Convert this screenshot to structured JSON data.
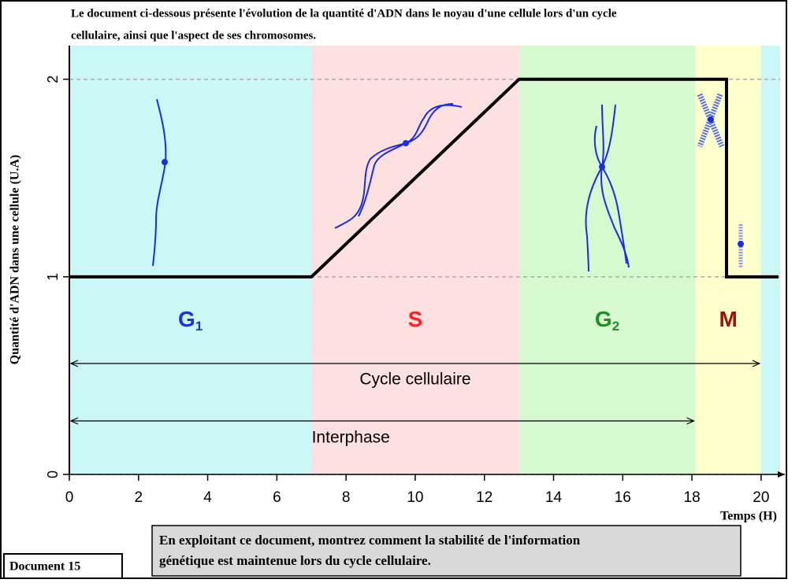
{
  "chart_data": {
    "type": "line",
    "title": "Le document ci-dessous présente l'évolution de la quantité d'ADN dans le noyau d'une cellule lors d'un cycle cellulaire, ainsi que l'aspect de ses chromosomes.",
    "y_label": "Quantité d'ADN dans une cellule (U.A)",
    "x_label": "Temps (H)",
    "x": [
      0,
      7,
      13,
      19,
      19,
      20.5
    ],
    "series": [
      {
        "color": "#000000",
        "values": [
          1,
          1,
          2,
          2,
          1,
          1
        ]
      }
    ],
    "xlim": [
      0,
      20.55
    ],
    "ylim": [
      0,
      2.17
    ],
    "xticks": [
      0,
      2,
      4,
      6,
      8,
      10,
      12,
      14,
      16,
      18,
      20
    ],
    "yticks": [
      0,
      1,
      2
    ],
    "grid": true,
    "phases": [
      {
        "name": "G",
        "sub": "1",
        "start": 0,
        "end": 7,
        "color": "#ccf7f7",
        "label_color": "#1f2fe0"
      },
      {
        "name": "S",
        "start": 7,
        "end": 13,
        "color": "#fde0e0",
        "label_color": "#ff2020"
      },
      {
        "name": "G",
        "sub": "2",
        "start": 13,
        "end": 18.1,
        "color": "#d6f9d0",
        "label_color": "#1f8f1f"
      },
      {
        "name": "M",
        "start": 18.1,
        "end": 20,
        "color": "#ffffcc",
        "label_color": "#a01010"
      },
      {
        "start": 20,
        "end": 20.55,
        "color": "#ccf7f7"
      }
    ],
    "spans": [
      {
        "label": "Cycle cellulaire",
        "start": 0,
        "end": 20
      },
      {
        "label": "Interphase",
        "start": 0,
        "end": 18.1
      }
    ],
    "question": [
      "En exploitant ce document, montrez comment la stabilité de l'information",
      "génétique est maintenue lors du cycle cellulaire."
    ],
    "document_label": "Document 15"
  }
}
